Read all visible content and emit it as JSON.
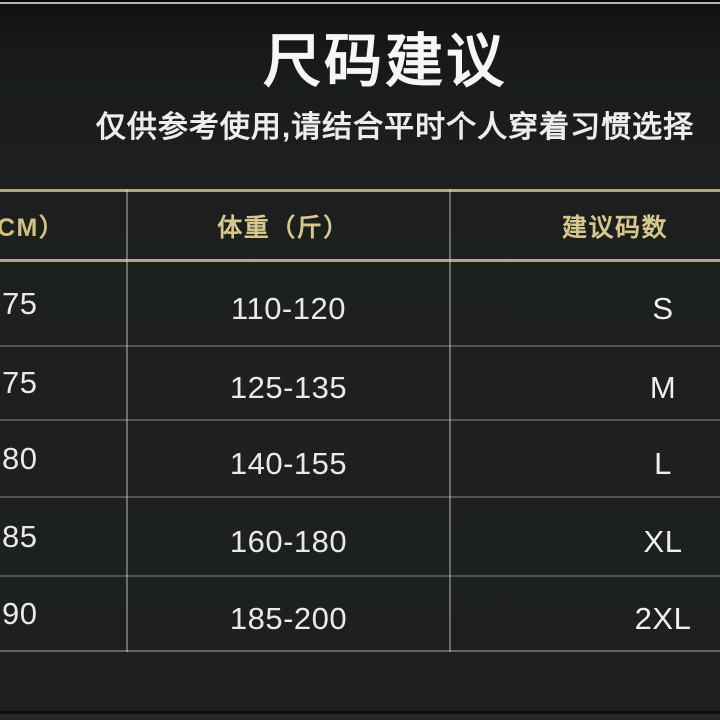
{
  "chart_data": {
    "type": "table",
    "title": "尺码建议",
    "subtitle": "仅供参考使用,请结合平时个人穿着习惯选择",
    "columns": [
      "CM）",
      "体重（斤）",
      "建议码数"
    ],
    "rows": [
      [
        "75",
        "110-120",
        "S"
      ],
      [
        "75",
        "125-135",
        "M"
      ],
      [
        "80",
        "140-155",
        "L"
      ],
      [
        "85",
        "160-180",
        "XL"
      ],
      [
        "90",
        "185-200",
        "2XL"
      ]
    ],
    "layout": {
      "first_column_cropped_at_left_edge": true,
      "header_divider_lines": "gold, full width",
      "body_grid": "gray horizontal and vertical dividers",
      "legend": "none"
    }
  },
  "colors": {
    "background": "#1d201e",
    "accent_gold_line": "#b1a87d",
    "header_text_gold": "#d7c78e",
    "body_text": "#e9eae8",
    "title_text": "#f6f7f5",
    "divider_gray": "#5d605e",
    "top_edge_line": "#b3b7b5",
    "top_edge_black": "#060807",
    "bottom_line": "#0c0e0d"
  }
}
